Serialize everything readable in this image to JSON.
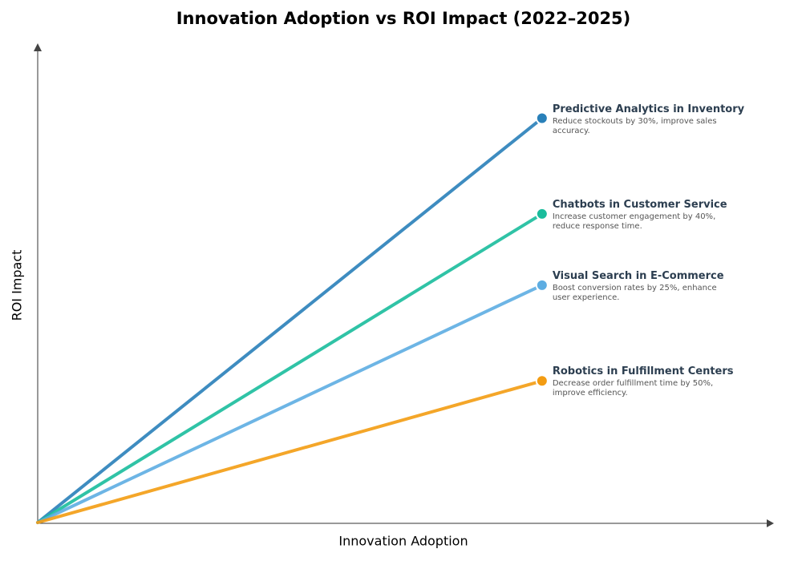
{
  "chart_data": {
    "type": "line",
    "title": "Innovation Adoption vs ROI Impact (2022–2025)",
    "x_label": "Innovation Adoption",
    "y_label": "ROI Impact",
    "xlim": [
      0,
      10
    ],
    "ylim": [
      0,
      10
    ],
    "series": [
      {
        "name": "Predictive Analytics in Inventory",
        "description": "Reduce stockouts by 30%, improve sales accuracy.",
        "color": "#2980b9",
        "x": [
          0,
          6.85
        ],
        "values": [
          0,
          8.45
        ]
      },
      {
        "name": "Chatbots in Customer Service",
        "description": "Increase customer engagement by 40%, reduce response time.",
        "color": "#1abc9c",
        "x": [
          0,
          6.85
        ],
        "values": [
          0,
          6.45
        ]
      },
      {
        "name": "Visual Search in E-Commerce",
        "description": "Boost conversion rates by 25%, enhance user experience.",
        "color": "#5dade2",
        "x": [
          0,
          6.85
        ],
        "values": [
          0,
          4.96
        ]
      },
      {
        "name": "Robotics in Fulfillment Centers",
        "description": "Decrease order fulfillment time by 50%, improve efficiency.",
        "color": "#f39c12",
        "x": [
          0,
          6.85
        ],
        "values": [
          0,
          2.96
        ]
      }
    ]
  }
}
